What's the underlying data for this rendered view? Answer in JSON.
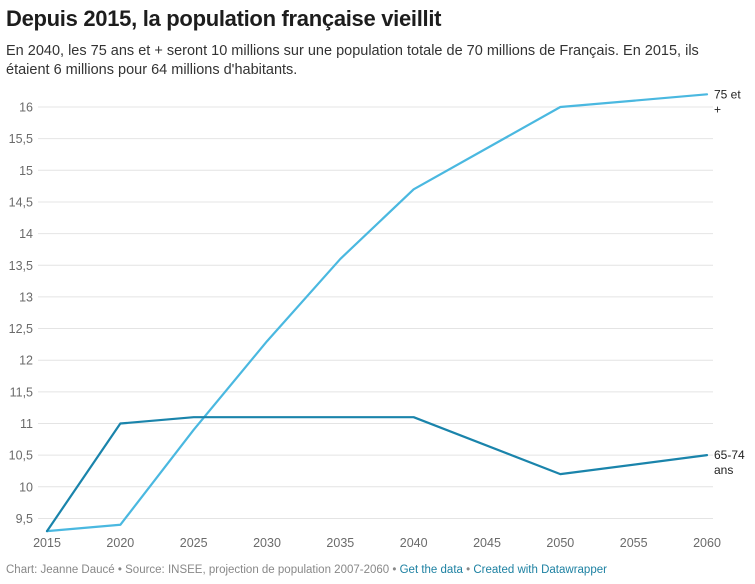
{
  "header": {
    "title": "Depuis 2015, la population française vieillit",
    "description": "En 2040, les 75 ans et + seront 10 millions sur une population totale de 70 millions de Français. En 2015, ils étaient 6 millions pour 64 millions d'habitants."
  },
  "footer": {
    "credit": "Chart: Jeanne Daucé",
    "separator": "•",
    "source": "Source: INSEE, projection de population 2007-2060",
    "get_data": "Get the data",
    "created_with": "Created with Datawrapper"
  },
  "chart_data": {
    "type": "line",
    "title": "Depuis 2015, la population française vieillit",
    "xlabel": "",
    "ylabel": "",
    "x": [
      2015,
      2020,
      2025,
      2030,
      2035,
      2040,
      2050,
      2060
    ],
    "xticks": [
      "2015",
      "2020",
      "2025",
      "2030",
      "2035",
      "2040",
      "2045",
      "2050",
      "2055",
      "2060"
    ],
    "xlim": [
      2015,
      2060
    ],
    "yticks": [
      "9,5",
      "10",
      "10,5",
      "11",
      "11,5",
      "12",
      "12,5",
      "13",
      "13,5",
      "14",
      "14,5",
      "15",
      "15,5",
      "16"
    ],
    "ytick_values": [
      9.5,
      10,
      10.5,
      11,
      11.5,
      12,
      12.5,
      13,
      13.5,
      14,
      14.5,
      15,
      15.5,
      16
    ],
    "ylim": [
      9.3,
      16.2
    ],
    "grid": true,
    "series": [
      {
        "name": "75 et +",
        "label_lines": [
          "75 et",
          "+"
        ],
        "color": "#4ab8e0",
        "values": [
          9.3,
          9.4,
          10.9,
          12.3,
          13.6,
          14.7,
          16.0,
          16.2
        ]
      },
      {
        "name": "65-74 ans",
        "label_lines": [
          "65-74",
          "ans"
        ],
        "color": "#1a84ab",
        "values": [
          9.3,
          11.0,
          11.1,
          11.1,
          11.1,
          11.1,
          10.2,
          10.5
        ]
      }
    ],
    "legend": "inline-right"
  }
}
